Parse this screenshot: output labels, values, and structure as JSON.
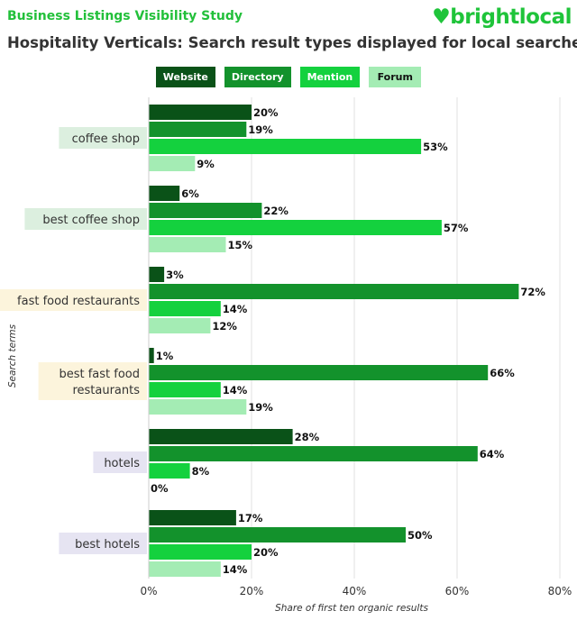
{
  "header": {
    "supertitle": "Business Listings Visibility Study",
    "logo_text": "brightlocal",
    "title": "Hospitality Verticals: Search result types displayed for local searches"
  },
  "colors": {
    "Website": "#0a5218",
    "Directory": "#13922c",
    "Mention": "#14d13e",
    "Forum": "#a4ecb4"
  },
  "chart_data": {
    "type": "bar",
    "orientation": "horizontal",
    "title": "Hospitality Verticals: Search result types displayed for local searches",
    "categories": [
      "coffee shop",
      "best coffee shop",
      "fast food restaurants",
      "best fast food restaurants",
      "hotels",
      "best hotels"
    ],
    "category_colors": [
      "#dcefdf",
      "#dcefdf",
      "#fcf4dc",
      "#fcf4dc",
      "#e6e4f2",
      "#e6e4f2"
    ],
    "series": [
      {
        "name": "Website",
        "values": [
          20,
          6,
          3,
          1,
          28,
          17
        ]
      },
      {
        "name": "Directory",
        "values": [
          19,
          22,
          72,
          66,
          64,
          50
        ]
      },
      {
        "name": "Mention",
        "values": [
          53,
          57,
          14,
          14,
          8,
          20
        ]
      },
      {
        "name": "Forum",
        "values": [
          9,
          15,
          12,
          19,
          0,
          14
        ]
      }
    ],
    "xlabel": "Share of first ten organic results",
    "ylabel": "Search terms",
    "xlim": [
      0,
      80
    ],
    "xticks": [
      "0%",
      "20%",
      "40%",
      "60%",
      "80%"
    ],
    "grid": true,
    "legend": "top-center"
  }
}
